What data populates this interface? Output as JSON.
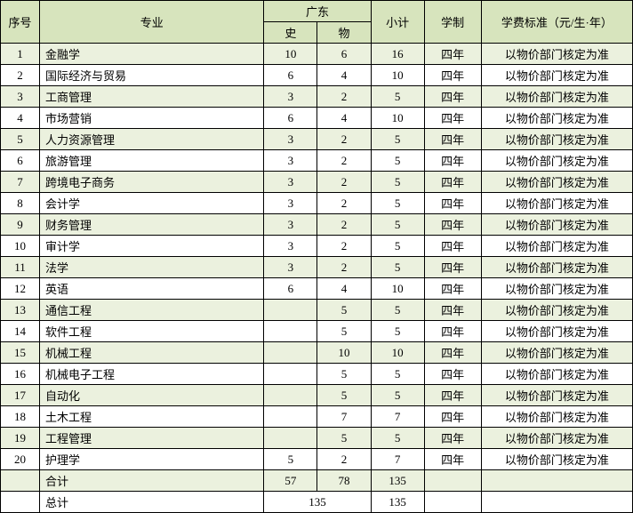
{
  "colors": {
    "header_bg": "#d7e4bd",
    "row_odd_bg": "#ebf1de",
    "row_even_bg": "#ffffff",
    "border": "#000000"
  },
  "header": {
    "seq": "序号",
    "major": "专业",
    "guangdong": "广东",
    "shi": "史",
    "wu": "物",
    "subtotal": "小计",
    "system": "学制",
    "fee": "学费标准（元/生·年）"
  },
  "rows": [
    {
      "seq": "1",
      "major": "金融学",
      "shi": "10",
      "wu": "6",
      "sub": "16",
      "sys": "四年",
      "fee": "以物价部门核定为准"
    },
    {
      "seq": "2",
      "major": "国际经济与贸易",
      "shi": "6",
      "wu": "4",
      "sub": "10",
      "sys": "四年",
      "fee": "以物价部门核定为准"
    },
    {
      "seq": "3",
      "major": "工商管理",
      "shi": "3",
      "wu": "2",
      "sub": "5",
      "sys": "四年",
      "fee": "以物价部门核定为准"
    },
    {
      "seq": "4",
      "major": "市场营销",
      "shi": "6",
      "wu": "4",
      "sub": "10",
      "sys": "四年",
      "fee": "以物价部门核定为准"
    },
    {
      "seq": "5",
      "major": "人力资源管理",
      "shi": "3",
      "wu": "2",
      "sub": "5",
      "sys": "四年",
      "fee": "以物价部门核定为准"
    },
    {
      "seq": "6",
      "major": "旅游管理",
      "shi": "3",
      "wu": "2",
      "sub": "5",
      "sys": "四年",
      "fee": "以物价部门核定为准"
    },
    {
      "seq": "7",
      "major": "跨境电子商务",
      "shi": "3",
      "wu": "2",
      "sub": "5",
      "sys": "四年",
      "fee": "以物价部门核定为准"
    },
    {
      "seq": "8",
      "major": "会计学",
      "shi": "3",
      "wu": "2",
      "sub": "5",
      "sys": "四年",
      "fee": "以物价部门核定为准"
    },
    {
      "seq": "9",
      "major": "财务管理",
      "shi": "3",
      "wu": "2",
      "sub": "5",
      "sys": "四年",
      "fee": "以物价部门核定为准"
    },
    {
      "seq": "10",
      "major": "审计学",
      "shi": "3",
      "wu": "2",
      "sub": "5",
      "sys": "四年",
      "fee": "以物价部门核定为准"
    },
    {
      "seq": "11",
      "major": "法学",
      "shi": "3",
      "wu": "2",
      "sub": "5",
      "sys": "四年",
      "fee": "以物价部门核定为准"
    },
    {
      "seq": "12",
      "major": "英语",
      "shi": "6",
      "wu": "4",
      "sub": "10",
      "sys": "四年",
      "fee": "以物价部门核定为准"
    },
    {
      "seq": "13",
      "major": "通信工程",
      "shi": "",
      "wu": "5",
      "sub": "5",
      "sys": "四年",
      "fee": "以物价部门核定为准"
    },
    {
      "seq": "14",
      "major": "软件工程",
      "shi": "",
      "wu": "5",
      "sub": "5",
      "sys": "四年",
      "fee": "以物价部门核定为准"
    },
    {
      "seq": "15",
      "major": "机械工程",
      "shi": "",
      "wu": "10",
      "sub": "10",
      "sys": "四年",
      "fee": "以物价部门核定为准"
    },
    {
      "seq": "16",
      "major": "机械电子工程",
      "shi": "",
      "wu": "5",
      "sub": "5",
      "sys": "四年",
      "fee": "以物价部门核定为准"
    },
    {
      "seq": "17",
      "major": "自动化",
      "shi": "",
      "wu": "5",
      "sub": "5",
      "sys": "四年",
      "fee": "以物价部门核定为准"
    },
    {
      "seq": "18",
      "major": "土木工程",
      "shi": "",
      "wu": "7",
      "sub": "7",
      "sys": "四年",
      "fee": "以物价部门核定为准"
    },
    {
      "seq": "19",
      "major": "工程管理",
      "shi": "",
      "wu": "5",
      "sub": "5",
      "sys": "四年",
      "fee": "以物价部门核定为准"
    },
    {
      "seq": "20",
      "major": "护理学",
      "shi": "5",
      "wu": "2",
      "sub": "7",
      "sys": "四年",
      "fee": "以物价部门核定为准"
    }
  ],
  "heji": {
    "label": "合计",
    "shi": "57",
    "wu": "78",
    "sub": "135"
  },
  "zongji": {
    "label": "总计",
    "merged": "135",
    "sub": "135"
  }
}
